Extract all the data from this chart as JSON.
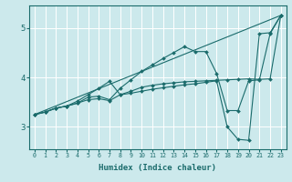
{
  "xlabel": "Humidex (Indice chaleur)",
  "bg_color": "#cce9ec",
  "line_color": "#1a6b6b",
  "grid_color": "#ffffff",
  "xlim": [
    -0.5,
    23.5
  ],
  "ylim": [
    2.55,
    5.45
  ],
  "yticks": [
    3,
    4,
    5
  ],
  "xticks": [
    0,
    1,
    2,
    3,
    4,
    5,
    6,
    7,
    8,
    9,
    10,
    11,
    12,
    13,
    14,
    15,
    16,
    17,
    18,
    19,
    20,
    21,
    22,
    23
  ],
  "series": [
    {
      "x": [
        0,
        1,
        2,
        3,
        4,
        5,
        6,
        7,
        8,
        9,
        10,
        11,
        12,
        13,
        14,
        15,
        16,
        17,
        18,
        19,
        20,
        21,
        22,
        23
      ],
      "y": [
        3.25,
        3.3,
        3.38,
        3.42,
        3.48,
        3.6,
        3.62,
        3.55,
        3.78,
        3.95,
        4.12,
        4.25,
        4.38,
        4.5,
        4.62,
        4.52,
        4.52,
        4.08,
        3.33,
        3.33,
        3.93,
        3.95,
        4.88,
        5.25
      ],
      "marker": true
    },
    {
      "x": [
        0,
        1,
        2,
        3,
        4,
        5,
        6,
        7,
        8,
        9,
        10,
        11,
        12,
        13,
        14,
        15,
        16,
        17,
        18,
        19,
        20,
        21,
        22,
        23
      ],
      "y": [
        3.25,
        3.3,
        3.38,
        3.42,
        3.52,
        3.65,
        3.78,
        3.92,
        3.65,
        3.72,
        3.8,
        3.84,
        3.87,
        3.89,
        3.91,
        3.92,
        3.93,
        3.94,
        3.95,
        3.96,
        3.97,
        3.96,
        3.97,
        5.25
      ],
      "marker": true
    },
    {
      "x": [
        0,
        1,
        2,
        3,
        4,
        5,
        6,
        7,
        8,
        9,
        10,
        11,
        12,
        13,
        14,
        15,
        16,
        17,
        18,
        19,
        20,
        21,
        22,
        23
      ],
      "y": [
        3.25,
        3.3,
        3.38,
        3.42,
        3.48,
        3.55,
        3.57,
        3.53,
        3.65,
        3.68,
        3.72,
        3.76,
        3.79,
        3.82,
        3.85,
        3.87,
        3.9,
        3.93,
        3.0,
        2.75,
        2.73,
        4.88,
        4.9,
        5.25
      ],
      "marker": true
    },
    {
      "x": [
        0,
        23
      ],
      "y": [
        3.25,
        5.25
      ],
      "marker": false
    }
  ]
}
